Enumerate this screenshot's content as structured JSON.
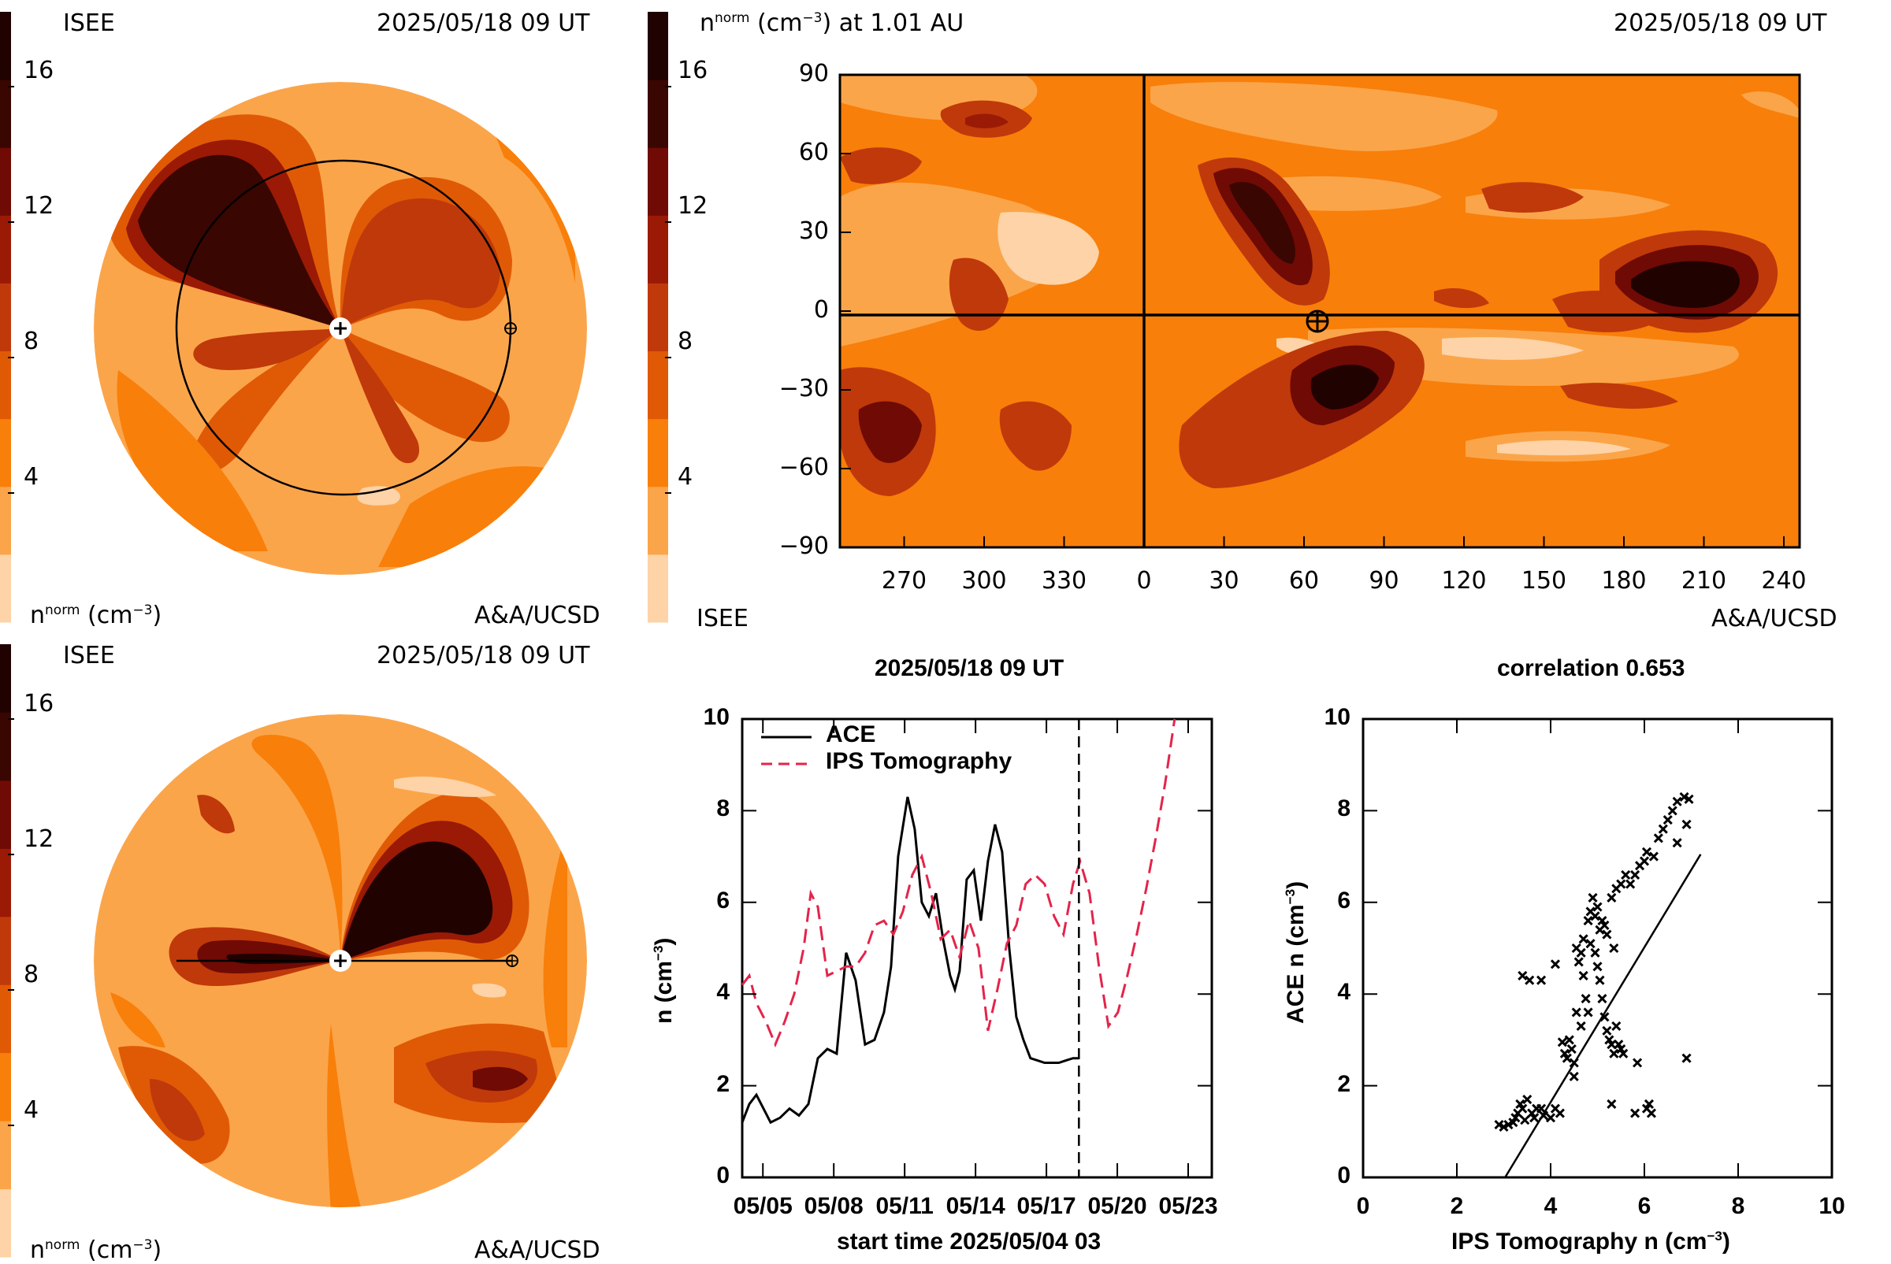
{
  "colors": {
    "scale": [
      "#fdd3a7",
      "#fba54a",
      "#f87f0a",
      "#e05a06",
      "#c0390a",
      "#9a1a06",
      "#700a04",
      "#3a0602",
      "#200201"
    ],
    "ace": "#000000",
    "ips": "#e4244a"
  },
  "panel_tl": {
    "org": "ISEE",
    "time": "2025/05/18 09 UT",
    "credit": "A&A/UCSD",
    "unit_main": "n",
    "unit_sup": "norm",
    "unit_tail": "(cm",
    "unit_exp": "−3",
    "unit_close": ")",
    "ticks": [
      "16",
      "12",
      "8",
      "4"
    ]
  },
  "panel_bl": {
    "org": "ISEE",
    "time": "2025/05/18 09 UT",
    "credit": "A&A/UCSD",
    "unit_main": "n",
    "unit_sup": "norm",
    "unit_tail": "(cm",
    "unit_exp": "−3",
    "unit_close": ")",
    "ticks": [
      "16",
      "12",
      "8",
      "4"
    ]
  },
  "panel_map": {
    "title_main": "n",
    "title_sup": "norm",
    "title_tail": "(cm",
    "title_exp": "−3",
    "title_close": ") at 1.01 AU",
    "time": "2025/05/18 09 UT",
    "org": "ISEE",
    "credit": "A&A/UCSD",
    "cb_ticks": [
      "16",
      "12",
      "8",
      "4"
    ],
    "lat_ticks": [
      "90",
      "60",
      "30",
      "0",
      "−30",
      "−60",
      "−90"
    ],
    "lon_ticks": [
      "270",
      "300",
      "330",
      "0",
      "30",
      "60",
      "90",
      "120",
      "150",
      "180",
      "210",
      "240"
    ]
  },
  "chart_data": [
    {
      "type": "line",
      "title": "2025/05/18 09 UT",
      "xlabel": "start time 2025/05/04 03",
      "ylabel": "n (cm",
      "ylabel_exp": "−3",
      "ylabel_close": ")",
      "x_tick_labels": [
        "05/05",
        "05/08",
        "05/11",
        "05/14",
        "05/17",
        "05/20",
        "05/23"
      ],
      "x_tick_days": [
        0.875,
        3.875,
        6.875,
        9.875,
        12.875,
        15.875,
        18.875
      ],
      "y_ticks": [
        "0",
        "2",
        "4",
        "6",
        "8",
        "10"
      ],
      "ylim": [
        0,
        10
      ],
      "xlim_days": [
        0,
        19.875
      ],
      "vline_day": 14.25,
      "series": [
        {
          "name": "ACE",
          "style": "solid",
          "x": [
            0,
            0.3,
            0.6,
            0.9,
            1.2,
            1.6,
            2.0,
            2.4,
            2.8,
            3.2,
            3.6,
            4.0,
            4.4,
            4.8,
            5.2,
            5.6,
            6.0,
            6.3,
            6.6,
            7.0,
            7.3,
            7.6,
            7.9,
            8.2,
            8.5,
            8.8,
            9.0,
            9.2,
            9.5,
            9.8,
            10.1,
            10.4,
            10.7,
            11.0,
            11.3,
            11.6,
            11.9,
            12.2,
            12.5,
            12.8,
            13.1,
            13.4,
            13.7,
            14.0,
            14.25
          ],
          "y": [
            1.2,
            1.6,
            1.8,
            1.5,
            1.2,
            1.3,
            1.5,
            1.35,
            1.6,
            2.6,
            2.8,
            2.7,
            4.9,
            4.3,
            2.9,
            3.0,
            3.6,
            4.6,
            7.0,
            8.3,
            7.6,
            6.0,
            5.7,
            6.2,
            5.2,
            4.4,
            4.1,
            4.5,
            6.5,
            6.7,
            5.6,
            6.9,
            7.7,
            7.1,
            5.0,
            3.5,
            3.0,
            2.6,
            2.55,
            2.5,
            2.5,
            2.5,
            2.55,
            2.6,
            2.6
          ],
          "show_from": 0,
          "show_to": 14.25
        },
        {
          "name": "IPS Tomography",
          "style": "dashed",
          "x": [
            0,
            0.3,
            0.6,
            1.0,
            1.4,
            1.8,
            2.2,
            2.6,
            2.9,
            3.2,
            3.6,
            4.0,
            4.4,
            4.8,
            5.2,
            5.6,
            6.0,
            6.4,
            6.8,
            7.2,
            7.6,
            8.0,
            8.4,
            8.8,
            9.2,
            9.6,
            10.0,
            10.4,
            10.8,
            11.2,
            11.6,
            12.0,
            12.4,
            12.8,
            13.2,
            13.6,
            14.0,
            14.3,
            14.7,
            15.1,
            15.5,
            15.9,
            16.3,
            16.7,
            17.1,
            17.5,
            17.9,
            18.3
          ],
          "y": [
            4.2,
            4.4,
            3.8,
            3.4,
            2.9,
            3.4,
            4.0,
            5.0,
            6.2,
            5.9,
            4.4,
            4.5,
            4.6,
            4.6,
            4.9,
            5.5,
            5.6,
            5.3,
            5.8,
            6.6,
            7.0,
            6.2,
            5.2,
            5.4,
            4.8,
            5.6,
            5.0,
            3.2,
            4.1,
            5.1,
            5.5,
            6.4,
            6.6,
            6.4,
            5.7,
            5.3,
            6.4,
            6.9,
            6.2,
            4.6,
            3.3,
            3.6,
            4.4,
            5.3,
            6.3,
            7.4,
            8.6,
            10.0
          ],
          "show_from": 0,
          "show_to": 19.875
        }
      ]
    },
    {
      "type": "scatter",
      "title": "correlation 0.653",
      "xlabel": "IPS Tomography n (cm",
      "xlabel_exp": "−3",
      "xlabel_close": ")",
      "ylabel": "ACE n (cm",
      "ylabel_exp": "−3",
      "ylabel_close": ")",
      "xlim": [
        0,
        10
      ],
      "ylim": [
        0,
        10
      ],
      "x_ticks": [
        "0",
        "2",
        "4",
        "6",
        "8",
        "10"
      ],
      "y_ticks": [
        "0",
        "2",
        "4",
        "6",
        "8",
        "10"
      ],
      "fit": {
        "slope": 1.69,
        "intercept": -5.12
      },
      "points": [
        [
          2.9,
          1.15
        ],
        [
          3.0,
          1.1
        ],
        [
          3.1,
          1.15
        ],
        [
          3.2,
          1.2
        ],
        [
          3.25,
          1.3
        ],
        [
          3.3,
          1.4
        ],
        [
          3.35,
          1.6
        ],
        [
          3.4,
          1.5
        ],
        [
          3.5,
          1.7
        ],
        [
          3.45,
          1.25
        ],
        [
          3.6,
          1.4
        ],
        [
          3.7,
          1.5
        ],
        [
          3.65,
          1.3
        ],
        [
          3.8,
          1.5
        ],
        [
          3.85,
          1.35
        ],
        [
          4.2,
          1.4
        ],
        [
          4.3,
          2.7
        ],
        [
          4.35,
          2.6
        ],
        [
          4.45,
          2.8
        ],
        [
          4.5,
          2.5
        ],
        [
          4.4,
          3.0
        ],
        [
          4.55,
          3.6
        ],
        [
          4.6,
          4.7
        ],
        [
          4.65,
          4.9
        ],
        [
          4.55,
          5.0
        ],
        [
          4.7,
          4.4
        ],
        [
          4.75,
          3.9
        ],
        [
          4.8,
          5.6
        ],
        [
          4.85,
          5.8
        ],
        [
          4.9,
          6.1
        ],
        [
          4.95,
          5.7
        ],
        [
          5.0,
          4.6
        ],
        [
          5.05,
          4.3
        ],
        [
          5.1,
          3.9
        ],
        [
          5.15,
          3.5
        ],
        [
          5.2,
          3.2
        ],
        [
          5.25,
          3.0
        ],
        [
          5.3,
          2.9
        ],
        [
          5.35,
          2.7
        ],
        [
          5.4,
          3.3
        ],
        [
          5.45,
          2.9
        ],
        [
          5.5,
          2.8
        ],
        [
          5.55,
          2.7
        ],
        [
          5.0,
          5.9
        ],
        [
          5.1,
          5.6
        ],
        [
          5.2,
          5.3
        ],
        [
          5.3,
          6.1
        ],
        [
          5.4,
          6.3
        ],
        [
          5.5,
          6.4
        ],
        [
          5.6,
          6.6
        ],
        [
          5.7,
          6.4
        ],
        [
          5.8,
          6.6
        ],
        [
          5.9,
          6.8
        ],
        [
          6.0,
          6.9
        ],
        [
          6.05,
          7.1
        ],
        [
          6.2,
          7.0
        ],
        [
          6.3,
          7.4
        ],
        [
          6.4,
          7.6
        ],
        [
          6.5,
          7.8
        ],
        [
          6.6,
          8.0
        ],
        [
          6.7,
          8.2
        ],
        [
          6.85,
          8.3
        ],
        [
          6.95,
          8.25
        ],
        [
          6.9,
          7.7
        ],
        [
          6.7,
          7.3
        ],
        [
          5.85,
          2.5
        ],
        [
          6.1,
          1.6
        ],
        [
          6.15,
          1.4
        ],
        [
          6.05,
          1.5
        ],
        [
          5.3,
          1.6
        ],
        [
          5.8,
          1.4
        ],
        [
          4.0,
          1.3
        ],
        [
          4.1,
          1.5
        ],
        [
          3.4,
          4.4
        ],
        [
          3.55,
          4.3
        ],
        [
          3.8,
          4.3
        ],
        [
          4.1,
          4.65
        ],
        [
          6.9,
          2.6
        ],
        [
          4.8,
          3.6
        ],
        [
          4.25,
          2.95
        ],
        [
          4.7,
          5.2
        ],
        [
          4.85,
          5.1
        ],
        [
          5.05,
          5.4
        ],
        [
          5.15,
          5.5
        ],
        [
          4.95,
          4.9
        ],
        [
          5.35,
          5.0
        ],
        [
          4.5,
          2.2
        ],
        [
          4.65,
          3.3
        ]
      ]
    }
  ]
}
